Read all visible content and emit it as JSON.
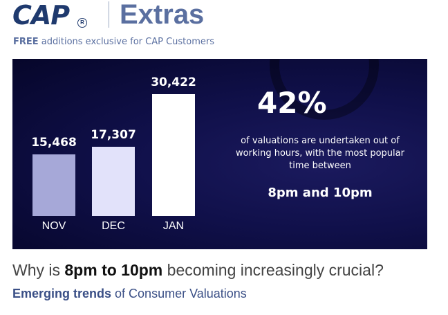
{
  "header": {
    "logo_text": "CAP",
    "logo_reg": "R",
    "extras": "Extras",
    "tagline_bold": "FREE",
    "tagline_rest": " additions exclusive for CAP Customers"
  },
  "banner": {
    "stat_percent": "42%",
    "stat_text": "of valuations are undertaken out of working hours, with the most popular time between",
    "stat_time": "8pm and 10pm"
  },
  "colors": {
    "bar_nov": "#a6a8d8",
    "bar_dec": "#e2e2fa",
    "bar_jan": "#ffffff"
  },
  "chart_data": {
    "type": "bar",
    "categories": [
      "NOV",
      "DEC",
      "JAN"
    ],
    "values": [
      15468,
      17307,
      30422
    ],
    "value_labels": [
      "15,468",
      "17,307",
      "30,422"
    ],
    "title": "",
    "xlabel": "",
    "ylabel": "",
    "ylim": [
      0,
      30422
    ],
    "grid": false
  },
  "footer": {
    "question_pre": "Why is ",
    "question_bold": "8pm to 10pm",
    "question_post": " becoming increasingly crucial?",
    "sub_bold": "Emerging trends",
    "sub_rest": " of Consumer Valuations"
  }
}
